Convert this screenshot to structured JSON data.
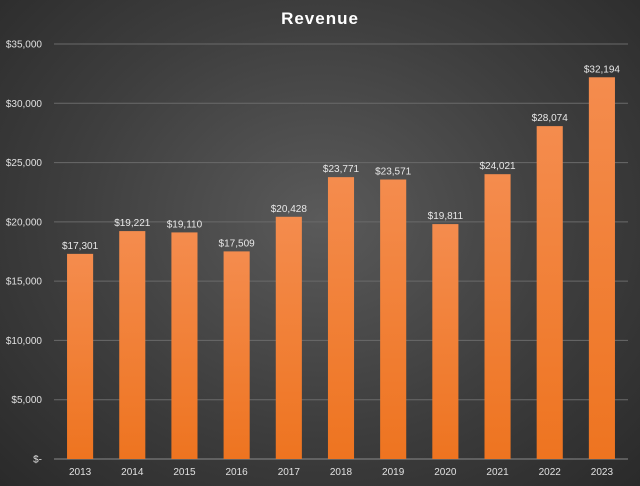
{
  "chart_data": {
    "type": "bar",
    "title": "Revenue",
    "categories": [
      "2013",
      "2014",
      "2015",
      "2016",
      "2017",
      "2018",
      "2019",
      "2020",
      "2021",
      "2022",
      "2023"
    ],
    "values": [
      17301,
      19221,
      19110,
      17509,
      20428,
      23771,
      23571,
      19811,
      24021,
      28074,
      32194
    ],
    "data_labels": [
      "$17,301",
      "$19,221",
      "$19,110",
      "$17,509",
      "$20,428",
      "$23,771",
      "$23,571",
      "$19,811",
      "$24,021",
      "$28,074",
      "$32,194"
    ],
    "y_ticks": [
      0,
      5000,
      10000,
      15000,
      20000,
      25000,
      30000,
      35000
    ],
    "y_tick_labels": [
      "$-",
      "$5,000",
      "$10,000",
      "$15,000",
      "$20,000",
      "$25,000",
      "$30,000",
      "$35,000"
    ],
    "ylim": [
      0,
      35000
    ],
    "xlabel": "",
    "ylabel": "",
    "grid": true,
    "bar_color": "#f07a2c"
  }
}
